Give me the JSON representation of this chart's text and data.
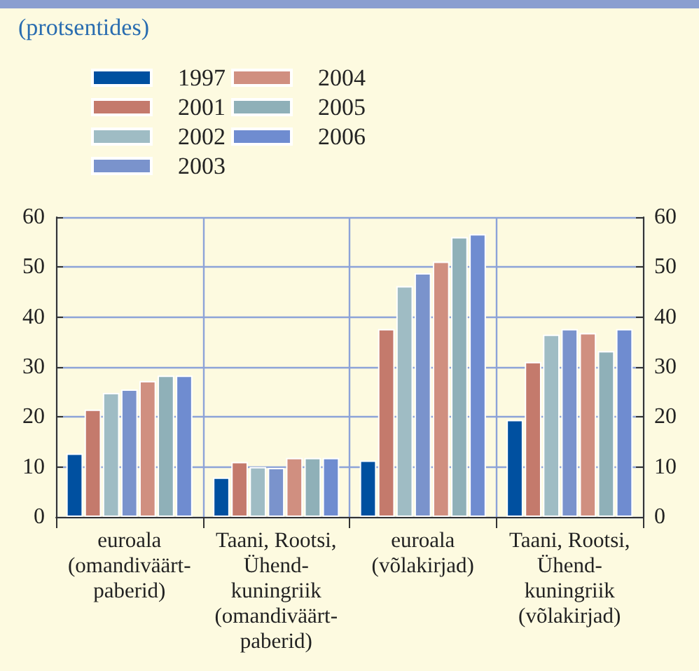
{
  "chart_data": {
    "type": "bar",
    "title": "(protsentides)",
    "categories": [
      "euroala\n(omandiväärt-\npaberid)",
      "Taani, Rootsi,\nÜhend-\nkuningriik\n(omandiväärt-\npaberid)",
      "euroala\n(võlakirjad)",
      "Taani, Rootsi,\nÜhend-\nkuningriik\n(võlakirjad)"
    ],
    "series": [
      {
        "name": "1997",
        "color": "#0050a0",
        "values": [
          12.7,
          7.9,
          11.3,
          19.4
        ]
      },
      {
        "name": "2001",
        "color": "#c47a6c",
        "values": [
          21.5,
          11,
          37.6,
          31
        ]
      },
      {
        "name": "2002",
        "color": "#9fbcc4",
        "values": [
          24.8,
          10,
          46.2,
          36.5
        ]
      },
      {
        "name": "2003",
        "color": "#7a93cc",
        "values": [
          25.5,
          9.8,
          48.8,
          37.6
        ]
      },
      {
        "name": "2004",
        "color": "#d08f80",
        "values": [
          27.2,
          11.8,
          51.1,
          36.8
        ]
      },
      {
        "name": "2005",
        "color": "#8fb0b8",
        "values": [
          28.3,
          11.8,
          56,
          33.2
        ]
      },
      {
        "name": "2006",
        "color": "#6f8cd0",
        "values": [
          28.3,
          11.8,
          56.6,
          37.6
        ]
      }
    ],
    "ylim": [
      0,
      60
    ],
    "yticks": [
      0,
      10,
      20,
      30,
      40,
      50,
      60
    ],
    "y2lim": [
      0,
      60
    ],
    "y2ticks": [
      0,
      10,
      20,
      30,
      40,
      50,
      60
    ],
    "grid": true,
    "legend": "top left"
  }
}
